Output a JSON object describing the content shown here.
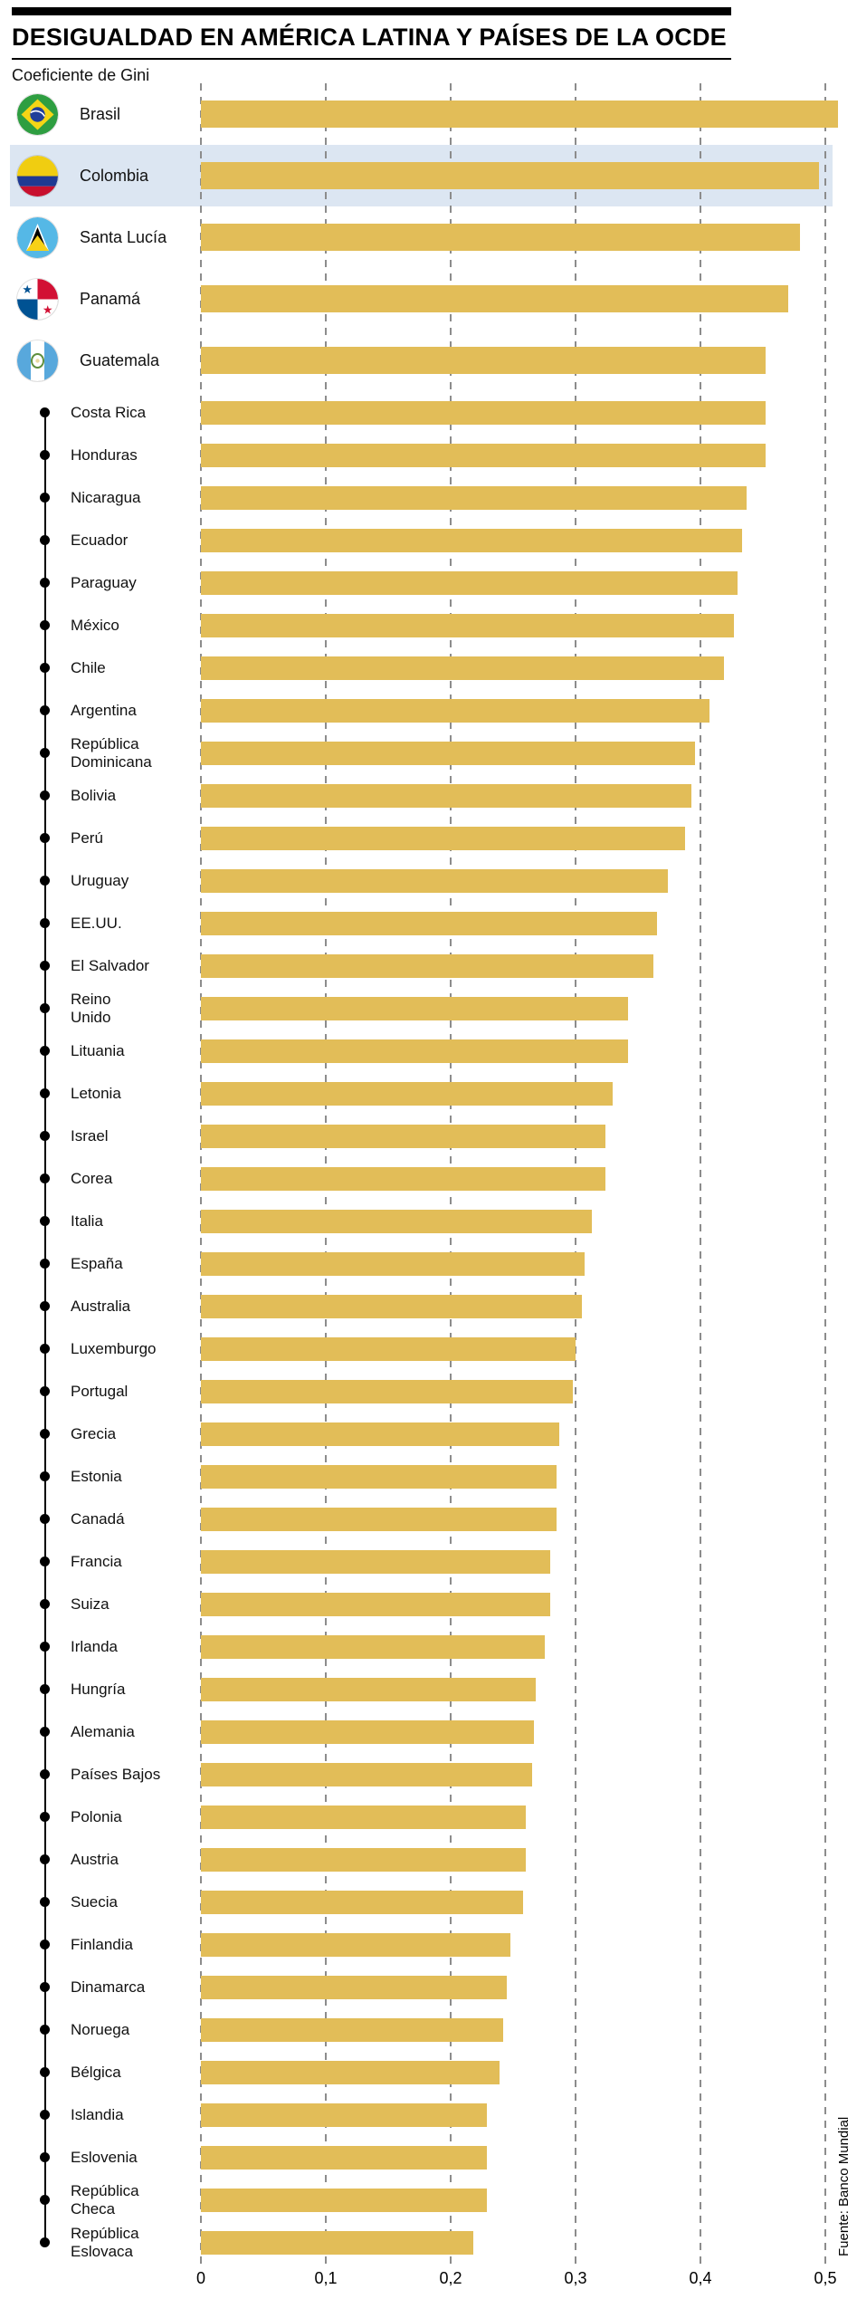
{
  "header": {
    "title": "DESIGUALDAD EN AMÉRICA LATINA Y PAÍSES DE LA OCDE",
    "subtitle": "Coeficiente de Gini"
  },
  "source_note": "Fuente: Banco Mundial",
  "colors": {
    "bar": "#e2bd58",
    "highlight_row": "#dce6f2",
    "gridline": "#8c8c8c",
    "rule": "#000000"
  },
  "icons": {
    "flag_icons": [
      "brasil-flag-icon",
      "colombia-flag-icon",
      "santa-lucia-flag-icon",
      "panama-flag-icon",
      "guatemala-flag-icon"
    ],
    "bullet": "list-bullet-dot"
  },
  "chart_data": {
    "type": "bar",
    "orientation": "horizontal",
    "title": "DESIGUALDAD EN AMÉRICA LATINA Y PAÍSES DE LA OCDE",
    "subtitle": "Coeficiente de Gini",
    "value_label": "Coeficiente de Gini",
    "xlim": [
      0,
      0.53
    ],
    "x_ticks": [
      "0",
      "0,1",
      "0,2",
      "0,3",
      "0,4",
      "0,5"
    ],
    "x_tick_values": [
      0,
      0.1,
      0.2,
      0.3,
      0.4,
      0.5
    ],
    "grid": "vertical-dashed",
    "legend": "none",
    "highlighted_category": "Colombia",
    "flag_categories": [
      "Brasil",
      "Colombia",
      "Santa Lucía",
      "Panamá",
      "Guatemala"
    ],
    "categories": [
      "Brasil",
      "Colombia",
      "Santa Lucía",
      "Panamá",
      "Guatemala",
      "Costa Rica",
      "Honduras",
      "Nicaragua",
      "Ecuador",
      "Paraguay",
      "México",
      "Chile",
      "Argentina",
      "República\nDominicana",
      "Bolivia",
      "Perú",
      "Uruguay",
      "EE.UU.",
      "El Salvador",
      "Reino\nUnido",
      "Lituania",
      "Letonia",
      "Israel",
      "Corea",
      "Italia",
      "España",
      "Australia",
      "Luxemburgo",
      "Portugal",
      "Grecia",
      "Estonia",
      "Canadá",
      "Francia",
      "Suiza",
      "Irlanda",
      "Hungría",
      "Alemania",
      "Países Bajos",
      "Polonia",
      "Austria",
      "Suecia",
      "Finlandia",
      "Dinamarca",
      "Noruega",
      "Bélgica",
      "Islandia",
      "Eslovenia",
      "República\nCheca",
      "República\nEslovaca"
    ],
    "values": [
      0.51,
      0.495,
      0.48,
      0.47,
      0.452,
      0.452,
      0.452,
      0.437,
      0.433,
      0.43,
      0.427,
      0.419,
      0.407,
      0.396,
      0.393,
      0.388,
      0.374,
      0.365,
      0.362,
      0.342,
      0.342,
      0.33,
      0.324,
      0.324,
      0.313,
      0.307,
      0.305,
      0.3,
      0.298,
      0.287,
      0.285,
      0.285,
      0.28,
      0.28,
      0.275,
      0.268,
      0.267,
      0.265,
      0.26,
      0.26,
      0.258,
      0.248,
      0.245,
      0.242,
      0.239,
      0.229,
      0.229,
      0.229,
      0.218
    ],
    "source": "Fuente: Banco Mundial"
  }
}
